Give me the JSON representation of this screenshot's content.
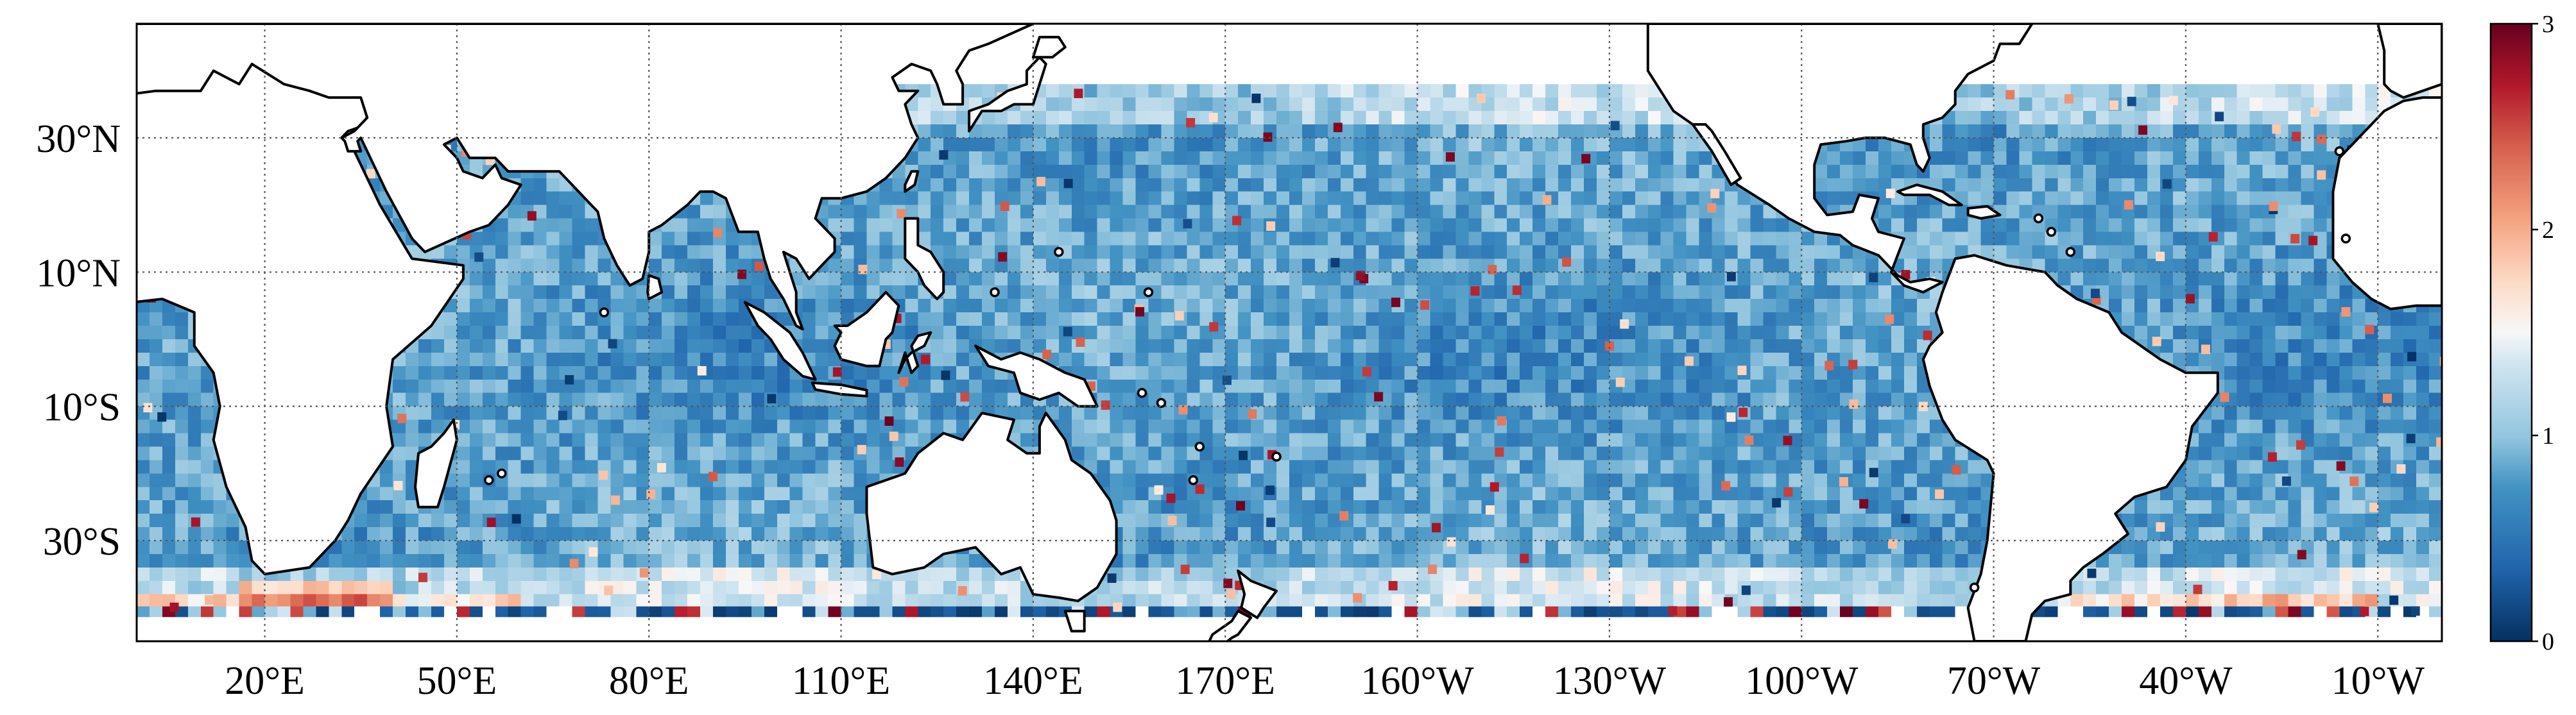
{
  "map": {
    "projection": "plate-carree",
    "central_longitude": 180,
    "lon_range": [
      0,
      360
    ],
    "lat_range": [
      -45,
      47
    ],
    "data_lat_range": [
      -40,
      38
    ],
    "grid": true,
    "colormap": "RdBu_r",
    "colors": {
      "low": "#053061",
      "mid_low": "#4393c3",
      "light_blue": "#92c5de",
      "mid": "#f7f7f7",
      "light_red": "#f4a582",
      "mid_high": "#d6604d",
      "high": "#67001f",
      "land": "#ffffff",
      "coastline": "#000000"
    }
  },
  "axes": {
    "lon_ticks": [
      {
        "value": 20,
        "label": "20°E"
      },
      {
        "value": 50,
        "label": "50°E"
      },
      {
        "value": 80,
        "label": "80°E"
      },
      {
        "value": 110,
        "label": "110°E"
      },
      {
        "value": 140,
        "label": "140°E"
      },
      {
        "value": 170,
        "label": "170°E"
      },
      {
        "value": 200,
        "label": "160°W"
      },
      {
        "value": 230,
        "label": "130°W"
      },
      {
        "value": 260,
        "label": "100°W"
      },
      {
        "value": 290,
        "label": "70°W"
      },
      {
        "value": 320,
        "label": "40°W"
      },
      {
        "value": 350,
        "label": "10°W"
      }
    ],
    "lat_ticks": [
      {
        "value": 30,
        "label": "30°N"
      },
      {
        "value": 10,
        "label": "10°N"
      },
      {
        "value": -10,
        "label": "10°S"
      },
      {
        "value": -30,
        "label": "30°S"
      }
    ]
  },
  "colorbar": {
    "min": 0,
    "max": 3,
    "ticks": [
      {
        "value": 0,
        "label": "0"
      },
      {
        "value": 1,
        "label": "1"
      },
      {
        "value": 2,
        "label": "2"
      },
      {
        "value": 3,
        "label": "3"
      }
    ],
    "orientation": "vertical",
    "placement": "right"
  }
}
